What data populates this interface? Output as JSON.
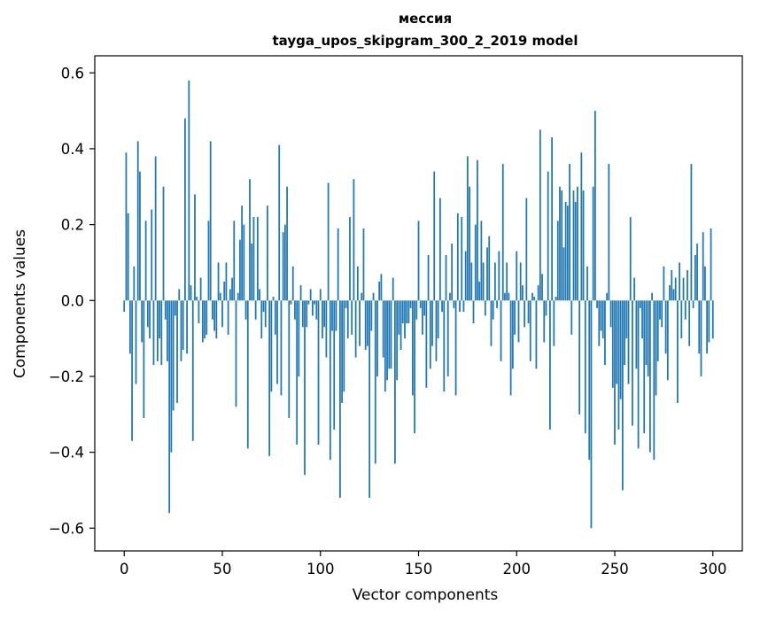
{
  "chart_data": {
    "type": "bar",
    "title_line1": "мессия",
    "title_line2": "tayga_upos_skipgram_300_2_2019 model",
    "xlabel": "Vector components",
    "ylabel": "Components values",
    "xlim": [
      -15,
      315
    ],
    "ylim": [
      -0.66,
      0.645
    ],
    "xticks": [
      0,
      50,
      100,
      150,
      200,
      250,
      300
    ],
    "xtick_labels": [
      "0",
      "50",
      "100",
      "150",
      "200",
      "250",
      "300"
    ],
    "yticks": [
      -0.6,
      -0.4,
      -0.2,
      0.0,
      0.2,
      0.4,
      0.6
    ],
    "ytick_labels": [
      "−0.6",
      "−0.4",
      "−0.2",
      "0.0",
      "0.2",
      "0.4",
      "0.6"
    ],
    "grid": false,
    "bar_color": "#1f77b4",
    "values": [
      -0.03,
      0.39,
      0.23,
      -0.14,
      -0.37,
      0.09,
      -0.22,
      0.42,
      0.34,
      -0.11,
      -0.31,
      0.21,
      -0.07,
      -0.1,
      0.24,
      -0.17,
      0.38,
      -0.16,
      -0.1,
      -0.17,
      0.3,
      -0.05,
      -0.16,
      -0.56,
      -0.4,
      -0.29,
      -0.04,
      -0.27,
      0.03,
      -0.16,
      -0.13,
      0.48,
      -0.14,
      0.58,
      0.04,
      -0.37,
      0.28,
      0.01,
      -0.06,
      0.06,
      -0.11,
      -0.1,
      -0.09,
      0.21,
      0.42,
      -0.05,
      -0.08,
      -0.1,
      0.1,
      0.02,
      -0.07,
      0.05,
      0.1,
      -0.09,
      0.03,
      0.06,
      0.21,
      -0.28,
      0.02,
      0.16,
      0.25,
      0.2,
      -0.05,
      -0.39,
      0.32,
      0.15,
      0.22,
      -0.05,
      0.22,
      0.03,
      -0.1,
      -0.03,
      -0.07,
      0.25,
      -0.41,
      -0.24,
      0.01,
      -0.09,
      -0.22,
      0.41,
      -0.25,
      0.18,
      0.2,
      0.3,
      -0.31,
      -0.01,
      0.09,
      -0.05,
      -0.38,
      -0.2,
      0.04,
      -0.07,
      -0.46,
      -0.07,
      -0.01,
      0.03,
      -0.04,
      -0.01,
      -0.05,
      -0.38,
      0.03,
      -0.1,
      -0.07,
      -0.15,
      0.31,
      -0.42,
      -0.08,
      -0.34,
      -0.08,
      0.19,
      -0.52,
      -0.27,
      -0.24,
      -0.02,
      -0.1,
      0.22,
      -0.09,
      0.32,
      -0.15,
      0.09,
      -0.12,
      0.02,
      0.19,
      -0.13,
      -0.12,
      -0.52,
      -0.08,
      0.02,
      -0.43,
      -0.2,
      0.05,
      0.07,
      -0.15,
      -0.24,
      -0.21,
      -0.18,
      -0.18,
      0.06,
      -0.43,
      -0.21,
      -0.09,
      -0.13,
      -0.06,
      -0.1,
      -0.06,
      -0.06,
      -0.02,
      -0.25,
      -0.35,
      -0.05,
      0.21,
      -0.02,
      -0.09,
      -0.04,
      -0.23,
      0.12,
      -0.18,
      -0.12,
      0.34,
      -0.16,
      -0.1,
      0.27,
      -0.03,
      -0.24,
      0.12,
      -0.2,
      0.02,
      0.15,
      -0.02,
      -0.25,
      0.23,
      -0.03,
      0.22,
      -0.03,
      0.13,
      0.38,
      0.3,
      0.1,
      -0.06,
      0.2,
      0.37,
      0.05,
      0.21,
      0.1,
      -0.04,
      0.14,
      0.17,
      -0.12,
      -0.05,
      0.1,
      -0.02,
      0.13,
      -0.16,
      0.36,
      0.02,
      0.1,
      0.02,
      -0.25,
      -0.18,
      -0.09,
      0.13,
      -0.11,
      0.1,
      0.04,
      -0.07,
      0.27,
      -0.06,
      -0.16,
      0.02,
      0.01,
      -0.18,
      0.04,
      0.45,
      0.07,
      -0.11,
      -0.04,
      0.34,
      -0.34,
      0.43,
      -0.12,
      0.01,
      0.21,
      0.3,
      0.29,
      0.14,
      0.26,
      0.25,
      0.36,
      -0.09,
      0.29,
      0.26,
      0.3,
      -0.3,
      0.39,
      0.29,
      -0.35,
      0.09,
      -0.42,
      -0.6,
      0.3,
      0.5,
      -0.02,
      -0.12,
      -0.08,
      -0.1,
      -0.17,
      0.02,
      0.36,
      -0.07,
      -0.23,
      -0.38,
      -0.22,
      -0.34,
      -0.26,
      -0.5,
      -0.17,
      -0.1,
      -0.22,
      0.22,
      -0.33,
      0.06,
      -0.18,
      -0.39,
      -0.02,
      -0.1,
      -0.35,
      -0.17,
      -0.2,
      -0.4,
      0.02,
      -0.42,
      -0.25,
      -0.16,
      -0.05,
      -0.07,
      0.09,
      -0.14,
      -0.21,
      0.04,
      0.08,
      0.03,
      0.06,
      -0.27,
      0.1,
      -0.1,
      0.06,
      -0.05,
      0.08,
      -0.12,
      0.36,
      -0.02,
      0.12,
      0.15,
      -0.14,
      -0.2,
      0.18,
      0.09,
      -0.14,
      -0.11,
      0.19,
      -0.1
    ]
  }
}
